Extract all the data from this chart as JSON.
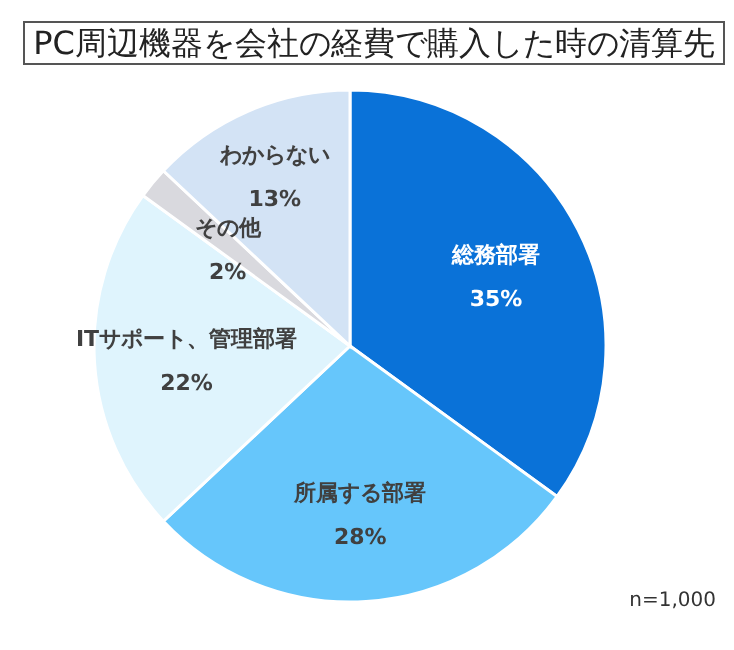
{
  "chart_data": {
    "type": "pie",
    "title": "PC周辺機器を会社の経費で購入した時の清算先",
    "categories": [
      "総務部署",
      "所属する部署",
      "ITサポート、管理部署",
      "その他",
      "わからない"
    ],
    "values": [
      35,
      28,
      22,
      2,
      13
    ],
    "value_labels": [
      "35%",
      "28%",
      "22%",
      "2%",
      "13%"
    ],
    "colors": [
      "#0a72d8",
      "#66c6fb",
      "#dff4fd",
      "#d9d9de",
      "#d3e3f5"
    ],
    "annotations": [
      "n=1,000"
    ]
  }
}
